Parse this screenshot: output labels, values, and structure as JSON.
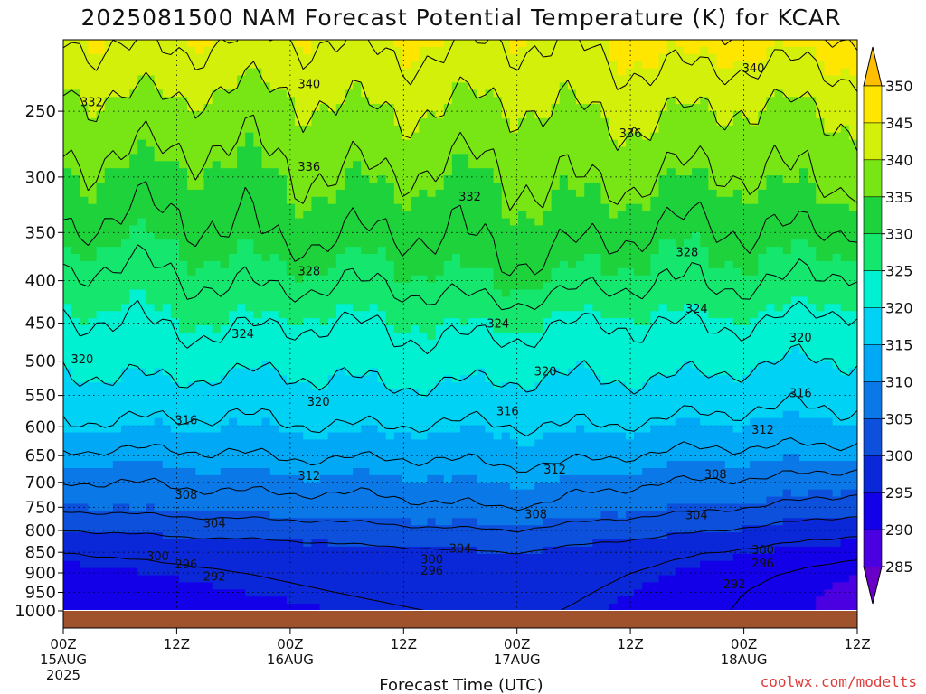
{
  "chart_data": {
    "type": "heatmap",
    "title": "2025081500 NAM Forecast Potential Temperature (K) for KCAR",
    "xlabel": "Forecast Time (UTC)",
    "ylabel": "",
    "y_axis": "pressure (hPa), inverted, log scale",
    "ylim": [
      1000,
      200
    ],
    "x_ticks": [
      {
        "hour": 0,
        "time": "00Z",
        "date": "15AUG",
        "year": "2025"
      },
      {
        "hour": 12,
        "time": "12Z",
        "date": "",
        "year": ""
      },
      {
        "hour": 24,
        "time": "00Z",
        "date": "16AUG",
        "year": ""
      },
      {
        "hour": 36,
        "time": "12Z",
        "date": "",
        "year": ""
      },
      {
        "hour": 48,
        "time": "00Z",
        "date": "17AUG",
        "year": ""
      },
      {
        "hour": 60,
        "time": "12Z",
        "date": "",
        "year": ""
      },
      {
        "hour": 72,
        "time": "00Z",
        "date": "18AUG",
        "year": ""
      },
      {
        "hour": 84,
        "time": "12Z",
        "date": "",
        "year": ""
      }
    ],
    "y_ticks": [
      250,
      300,
      350,
      400,
      450,
      500,
      550,
      600,
      650,
      700,
      750,
      800,
      850,
      900,
      950,
      1000
    ],
    "colorbar": {
      "levels": [
        285,
        290,
        295,
        300,
        305,
        310,
        315,
        320,
        325,
        330,
        335,
        340,
        345,
        350
      ],
      "labels": [
        "350",
        "345",
        "340",
        "335",
        "330",
        "325",
        "320",
        "315",
        "310",
        "305",
        "300",
        "295",
        "290",
        "285"
      ],
      "colors": [
        "#6a00c8",
        "#4a00e0",
        "#1400e8",
        "#0a28d8",
        "#0c50dc",
        "#0a78e6",
        "#00a8f5",
        "#00d2f5",
        "#00f0d2",
        "#14e66e",
        "#1ed23c",
        "#78e614",
        "#d2f00a",
        "#ffe600",
        "#ffbe00"
      ]
    },
    "series": [
      {
        "name": "",
        "pressure": [
          1000,
          950,
          900,
          850,
          800,
          750,
          700,
          650,
          600,
          550,
          500,
          450,
          400,
          350,
          300,
          250,
          220
        ],
        "theta_hour0": [
          292,
          293,
          294,
          296,
          300,
          305,
          308,
          311,
          315,
          318,
          321,
          324,
          327,
          331,
          334,
          338,
          342
        ]
      },
      {
        "name": "",
        "pressure": [
          1000,
          950,
          900,
          850,
          800,
          750,
          700,
          650,
          600,
          550,
          500,
          450,
          400,
          350,
          300,
          250,
          220
        ],
        "theta_hour48": [
          297,
          298,
          299,
          300,
          304,
          308,
          310,
          313,
          316,
          319,
          322,
          325,
          330,
          333,
          336,
          340,
          343
        ]
      },
      {
        "name": "",
        "pressure": [
          1000,
          950,
          900,
          850,
          800,
          750,
          700,
          650,
          600,
          550,
          500,
          450,
          400,
          350,
          300,
          250,
          220
        ],
        "theta_hour84": [
          289,
          289,
          290,
          293,
          297,
          302,
          306,
          310,
          314,
          317,
          320,
          323,
          327,
          331,
          336,
          340,
          345
        ]
      }
    ],
    "contour_labels": [
      {
        "text": "340",
        "hour": 26,
        "p": 232
      },
      {
        "text": "340",
        "hour": 73,
        "p": 222
      },
      {
        "text": "332",
        "hour": 3,
        "p": 244
      },
      {
        "text": "336",
        "hour": 26,
        "p": 292
      },
      {
        "text": "336",
        "hour": 60,
        "p": 266
      },
      {
        "text": "332",
        "hour": 43,
        "p": 317
      },
      {
        "text": "328",
        "hour": 26,
        "p": 390
      },
      {
        "text": "328",
        "hour": 66,
        "p": 370
      },
      {
        "text": "324",
        "hour": 19,
        "p": 464
      },
      {
        "text": "324",
        "hour": 46,
        "p": 451
      },
      {
        "text": "324",
        "hour": 67,
        "p": 433
      },
      {
        "text": "320",
        "hour": 2,
        "p": 498
      },
      {
        "text": "320",
        "hour": 27,
        "p": 560
      },
      {
        "text": "320",
        "hour": 51,
        "p": 515
      },
      {
        "text": "320",
        "hour": 78,
        "p": 469
      },
      {
        "text": "316",
        "hour": 13,
        "p": 590
      },
      {
        "text": "316",
        "hour": 47,
        "p": 575
      },
      {
        "text": "316",
        "hour": 78,
        "p": 547
      },
      {
        "text": "312",
        "hour": 26,
        "p": 688
      },
      {
        "text": "312",
        "hour": 52,
        "p": 676
      },
      {
        "text": "312",
        "hour": 74,
        "p": 606
      },
      {
        "text": "308",
        "hour": 13,
        "p": 725
      },
      {
        "text": "308",
        "hour": 50,
        "p": 766
      },
      {
        "text": "308",
        "hour": 69,
        "p": 686
      },
      {
        "text": "304",
        "hour": 16,
        "p": 785
      },
      {
        "text": "304",
        "hour": 42,
        "p": 842
      },
      {
        "text": "304",
        "hour": 67,
        "p": 768
      },
      {
        "text": "300",
        "hour": 10,
        "p": 860
      },
      {
        "text": "300",
        "hour": 39,
        "p": 868
      },
      {
        "text": "300",
        "hour": 74,
        "p": 845
      },
      {
        "text": "296",
        "hour": 13,
        "p": 880
      },
      {
        "text": "296",
        "hour": 39,
        "p": 895
      },
      {
        "text": "296",
        "hour": 74,
        "p": 878
      },
      {
        "text": "292",
        "hour": 16,
        "p": 910
      },
      {
        "text": "292",
        "hour": 71,
        "p": 930
      }
    ]
  },
  "credit": "coolwx.com/modelts",
  "colors": {
    "ground": "#a0522d",
    "contour": "#000000",
    "credit": "#e03a3a"
  }
}
